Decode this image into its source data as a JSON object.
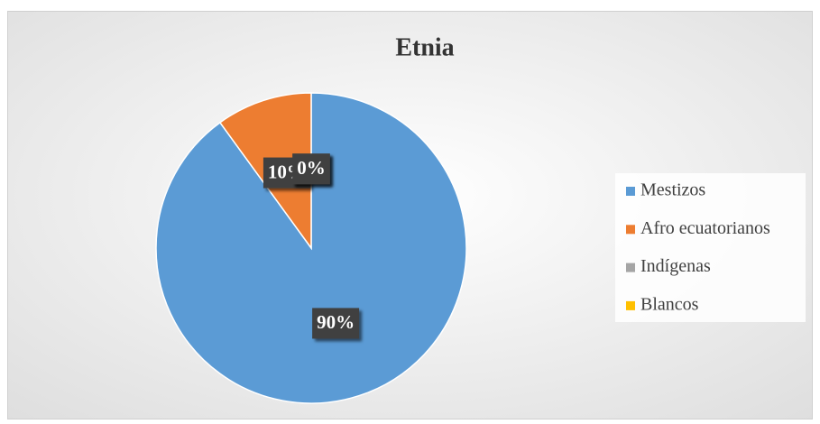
{
  "chart_data": {
    "type": "pie",
    "title": "Etnia",
    "categories": [
      "Mestizos",
      "Afro ecuatorianos",
      "Indígenas",
      "Blancos"
    ],
    "values": [
      90,
      10,
      0,
      0
    ],
    "value_labels": [
      "90%",
      "10%",
      "0%",
      "0%"
    ],
    "colors": [
      "#5b9bd5",
      "#ed7d31",
      "#a5a5a5",
      "#ffc000"
    ],
    "legend": "right"
  }
}
